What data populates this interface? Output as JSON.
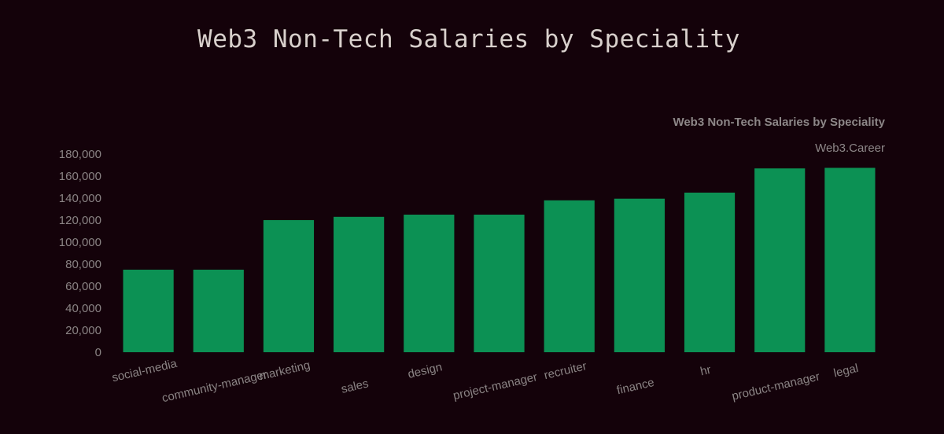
{
  "page": {
    "title": "Web3 Non-Tech Salaries by Speciality"
  },
  "chart_data": {
    "type": "bar",
    "title": "Web3 Non-Tech Salaries by Speciality",
    "source": "Web3.Career",
    "xlabel": "",
    "ylabel": "",
    "categories": [
      "social-media",
      "community-manager",
      "marketing",
      "sales",
      "design",
      "project-manager",
      "recruiter",
      "finance",
      "hr",
      "product-manager",
      "legal"
    ],
    "values": [
      75000,
      75000,
      120000,
      123000,
      125000,
      125000,
      138000,
      139500,
      145000,
      167000,
      167500
    ],
    "ylim": [
      0,
      180000
    ],
    "yticks": [
      0,
      20000,
      40000,
      60000,
      80000,
      100000,
      120000,
      140000,
      160000,
      180000
    ],
    "ytick_labels": [
      "0",
      "20,000",
      "40,000",
      "60,000",
      "80,000",
      "100,000",
      "120,000",
      "140,000",
      "160,000",
      "180,000"
    ],
    "bar_color": "#0c9154",
    "grid": false,
    "legend": "none"
  }
}
